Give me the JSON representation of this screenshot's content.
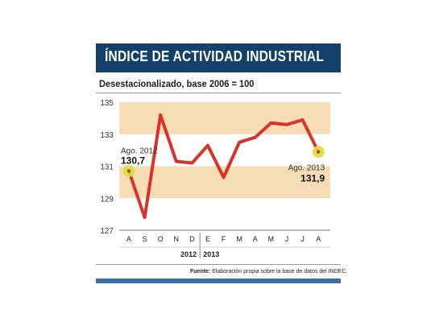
{
  "header": {
    "title": "ÍNDICE DE ACTIVIDAD INDUSTRIAL",
    "subtitle": "Desestacionalizado, base 2006 = 100"
  },
  "footer": {
    "source_label": "Fuente:",
    "source_text": "Elaboración propia sobre la base de datos del INDEC."
  },
  "colors": {
    "title_bar": "#14406c",
    "band": "#f6ddb6",
    "line": "#d9322a",
    "marker": "#d4e13b",
    "bottom_bar": "#3a6fa0"
  },
  "chart_data": {
    "type": "line",
    "title": "ÍNDICE DE ACTIVIDAD INDUSTRIAL",
    "subtitle": "Desestacionalizado, base 2006 = 100",
    "categories": [
      "A",
      "S",
      "O",
      "N",
      "D",
      "E",
      "F",
      "M",
      "A",
      "M",
      "J",
      "J",
      "A"
    ],
    "year_groups": [
      {
        "label": "2012",
        "start": 0,
        "end": 4
      },
      {
        "label": "2013",
        "start": 5,
        "end": 12
      }
    ],
    "series": [
      {
        "values": [
          130.7,
          127.8,
          134.2,
          131.3,
          131.2,
          132.3,
          130.3,
          132.5,
          132.8,
          133.7,
          133.6,
          133.9,
          131.9
        ]
      }
    ],
    "ylim": [
      127,
      135
    ],
    "yticks": [
      127,
      129,
      131,
      133,
      135
    ],
    "shaded_bands": [
      [
        129,
        131
      ],
      [
        133,
        135
      ]
    ],
    "grid": false,
    "annotations": [
      {
        "index": 0,
        "label": "Ago. 2012",
        "value": "130,7"
      },
      {
        "index": 12,
        "label": "Ago. 2013",
        "value": "131,9"
      }
    ]
  }
}
